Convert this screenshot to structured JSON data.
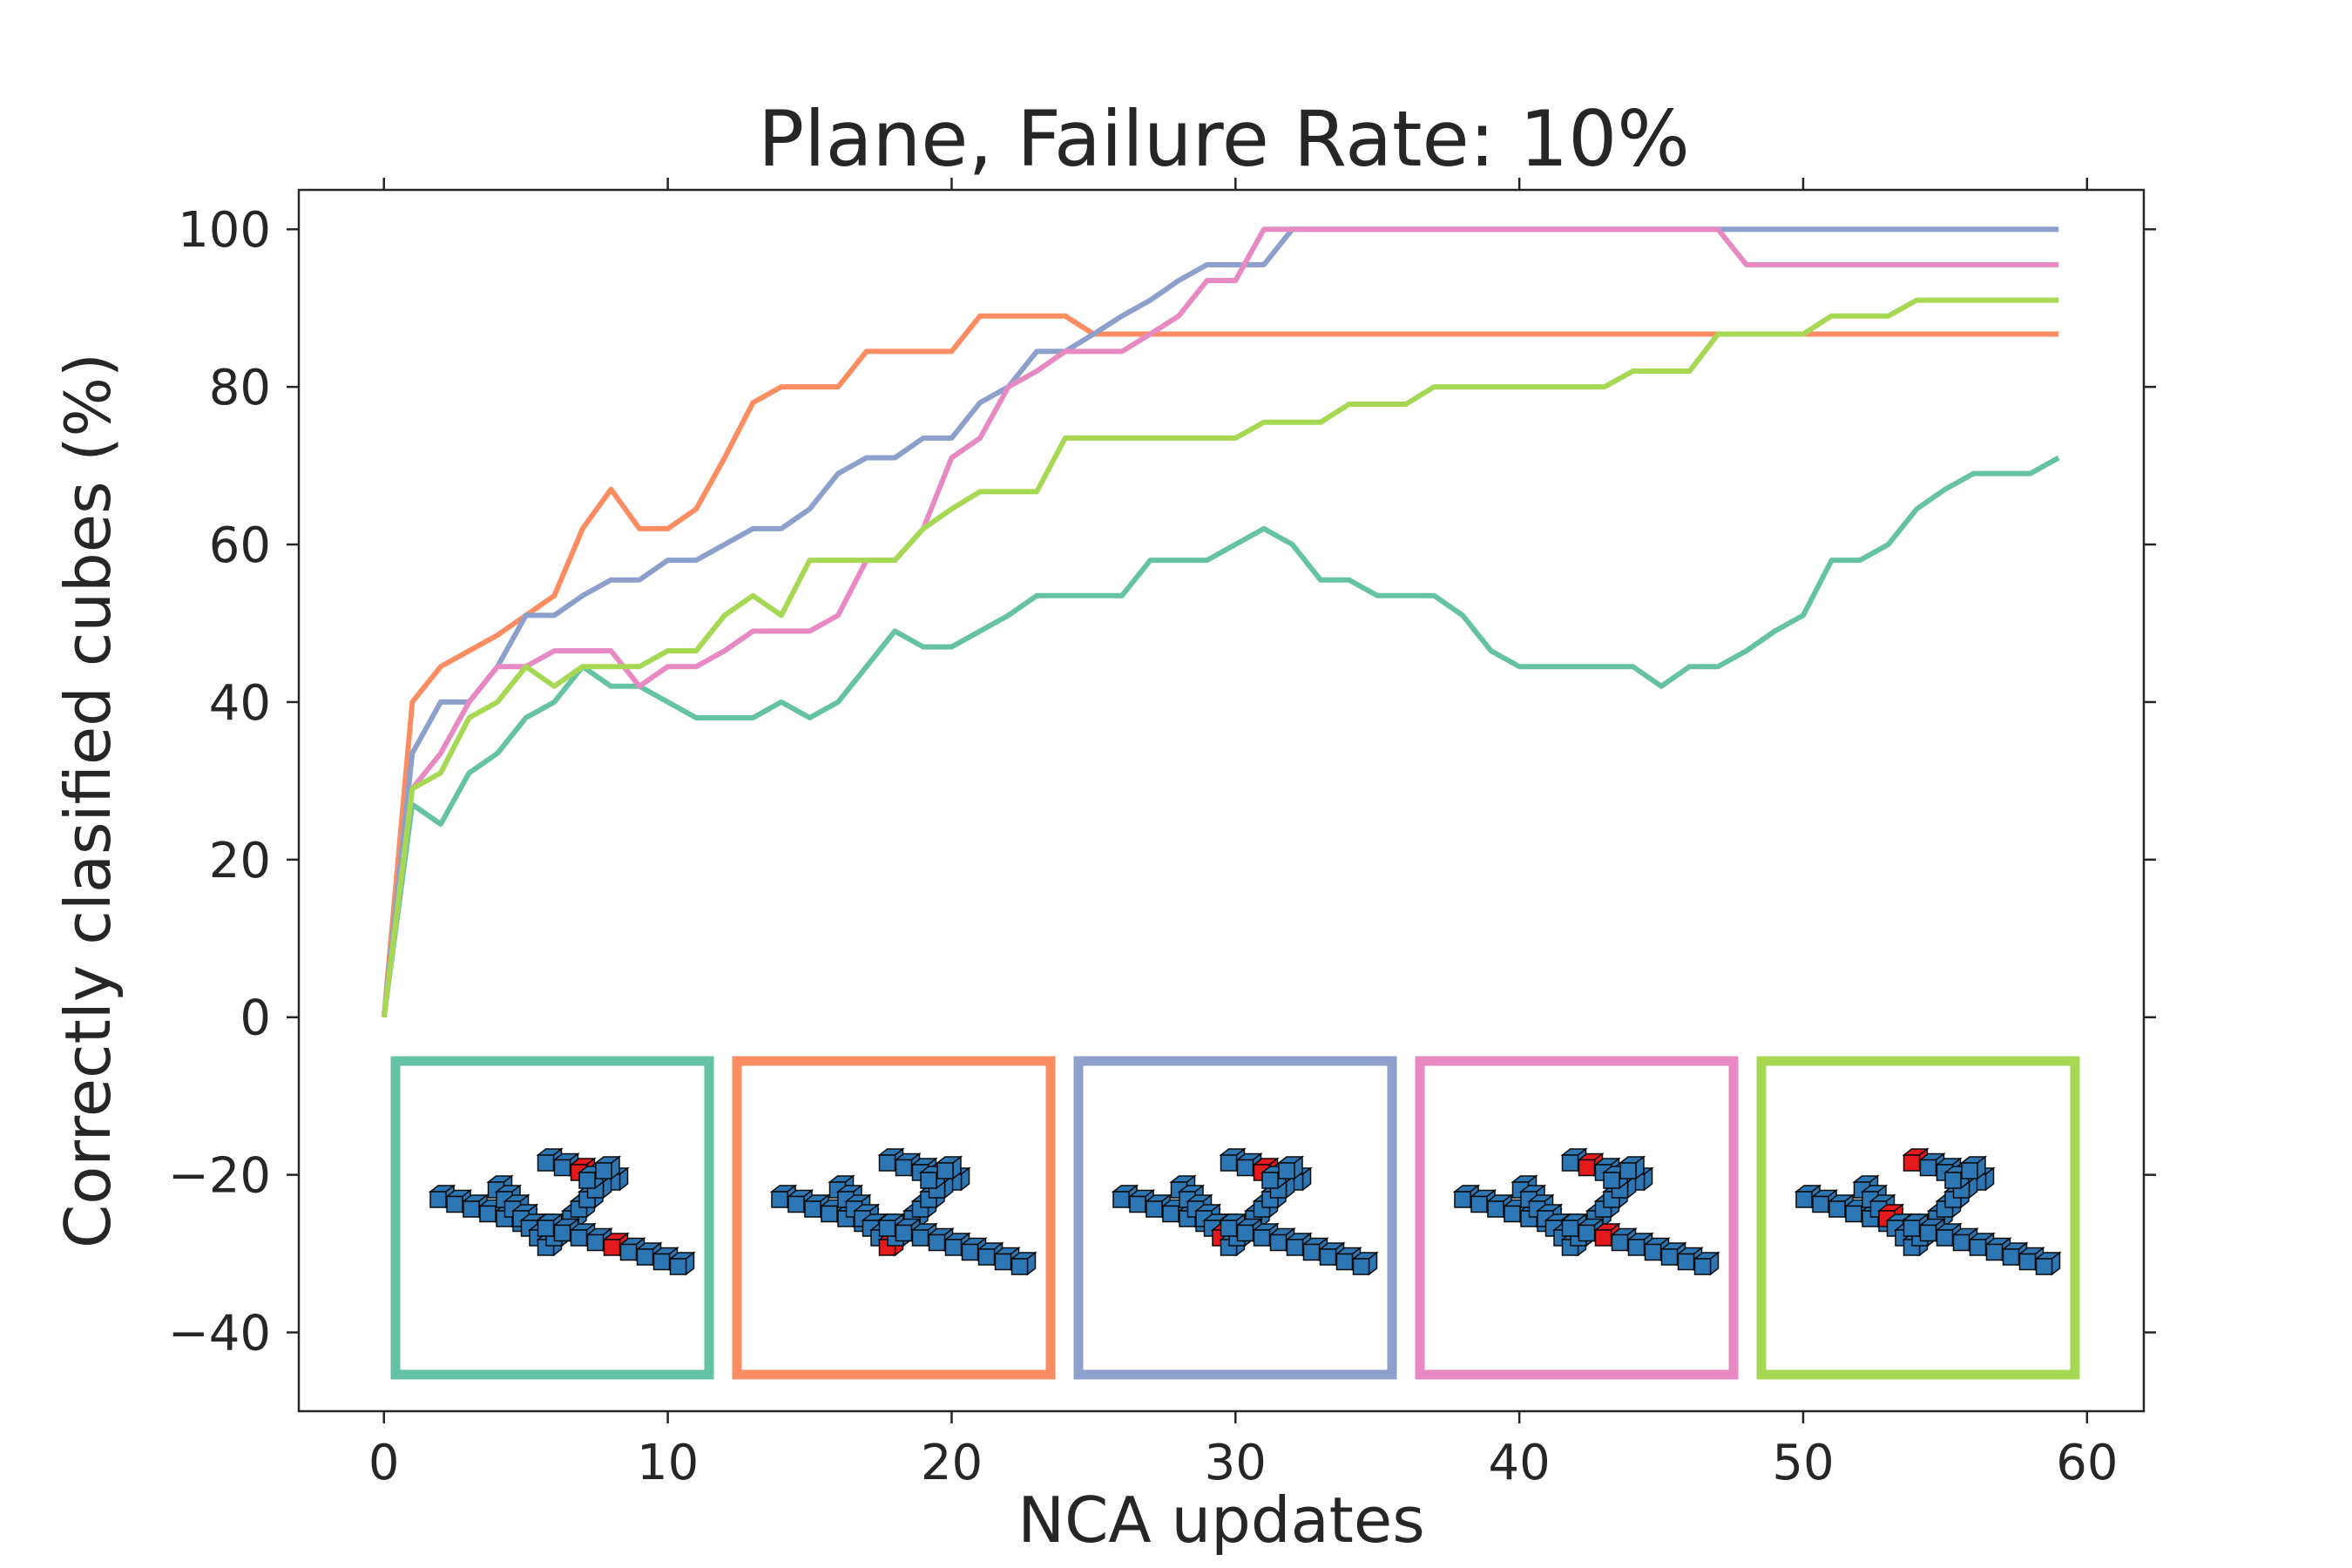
{
  "chart_data": {
    "type": "line",
    "title": "Plane, Failure Rate: 10%",
    "xlabel": "NCA updates",
    "ylabel": "Correctly clasified cubes (%)",
    "xlim": [
      -3,
      62
    ],
    "ylim": [
      -50,
      105
    ],
    "xticks": [
      0,
      10,
      20,
      30,
      40,
      50,
      60
    ],
    "yticks": [
      100,
      80,
      60,
      40,
      20,
      0,
      -20,
      -40
    ],
    "ytick_labels": [
      "100",
      "80",
      "60",
      "40",
      "20",
      "0",
      "−20",
      "−40"
    ],
    "grid": false,
    "x": [
      0,
      1,
      2,
      3,
      4,
      5,
      6,
      7,
      8,
      9,
      10,
      11,
      12,
      13,
      14,
      15,
      16,
      17,
      18,
      19,
      20,
      21,
      22,
      23,
      24,
      25,
      26,
      27,
      28,
      29,
      30,
      31,
      32,
      33,
      34,
      35,
      36,
      37,
      38,
      39,
      40,
      41,
      42,
      43,
      44,
      45,
      46,
      47,
      48,
      49,
      50,
      51,
      52,
      53,
      54,
      55,
      56,
      57,
      58,
      59
    ],
    "series": [
      {
        "name": "run-teal",
        "color": "#66c2a5",
        "values": [
          0,
          27,
          24.5,
          31,
          33.5,
          38,
          40,
          44.5,
          42,
          42,
          40,
          38,
          38,
          38,
          40,
          38,
          40,
          44.5,
          49,
          47,
          47,
          49,
          51,
          53.5,
          53.5,
          53.5,
          53.5,
          58,
          58,
          58,
          60,
          62,
          60,
          55.5,
          55.5,
          53.5,
          53.5,
          53.5,
          51,
          46.5,
          44.5,
          44.5,
          44.5,
          44.5,
          44.5,
          42,
          44.5,
          44.5,
          46.5,
          49,
          51,
          58,
          58,
          60,
          64.5,
          67,
          69,
          69,
          69,
          71
        ]
      },
      {
        "name": "run-orange",
        "color": "#fc8d62",
        "values": [
          0,
          40,
          44.5,
          46.5,
          48.5,
          51,
          53.5,
          62,
          67,
          62,
          62,
          64.5,
          71,
          78,
          80,
          80,
          80,
          84.5,
          84.5,
          84.5,
          84.5,
          89,
          89,
          89,
          89,
          86.7,
          86.7,
          86.7,
          86.7,
          86.7,
          86.7,
          86.7,
          86.7,
          86.7,
          86.7,
          86.7,
          86.7,
          86.7,
          86.7,
          86.7,
          86.7,
          86.7,
          86.7,
          86.7,
          86.7,
          86.7,
          86.7,
          86.7,
          86.7,
          86.7,
          86.7,
          86.7,
          86.7,
          86.7,
          86.7,
          86.7,
          86.7,
          86.7,
          86.7,
          86.7
        ]
      },
      {
        "name": "run-blue",
        "color": "#8da0cb",
        "values": [
          0,
          33.5,
          40,
          40,
          44.5,
          51,
          51,
          53.5,
          55.5,
          55.5,
          58,
          58,
          60,
          62,
          62,
          64.5,
          69,
          71,
          71,
          73.5,
          73.5,
          78,
          80,
          84.5,
          84.5,
          86.7,
          89,
          91,
          93.5,
          95.5,
          95.5,
          95.5,
          100,
          100,
          100,
          100,
          100,
          100,
          100,
          100,
          100,
          100,
          100,
          100,
          100,
          100,
          100,
          100,
          100,
          100,
          100,
          100,
          100,
          100,
          100,
          100,
          100,
          100,
          100,
          100
        ]
      },
      {
        "name": "run-pink",
        "color": "#e78ac3",
        "values": [
          0,
          29,
          33.5,
          40,
          44.5,
          44.5,
          46.5,
          46.5,
          46.5,
          42,
          44.5,
          44.5,
          46.5,
          49,
          49,
          49,
          51,
          58,
          58,
          62,
          71,
          73.5,
          80,
          82,
          84.5,
          84.5,
          84.5,
          86.7,
          89,
          93.5,
          93.5,
          100,
          100,
          100,
          100,
          100,
          100,
          100,
          100,
          100,
          100,
          100,
          100,
          100,
          100,
          100,
          100,
          100,
          95.5,
          95.5,
          95.5,
          95.5,
          95.5,
          95.5,
          95.5,
          95.5,
          95.5,
          95.5,
          95.5,
          95.5
        ]
      },
      {
        "name": "run-green",
        "color": "#a6d854",
        "values": [
          0,
          29,
          31,
          38,
          40,
          44.5,
          42,
          44.5,
          44.5,
          44.5,
          46.5,
          46.5,
          51,
          53.5,
          51,
          58,
          58,
          58,
          58,
          62,
          64.5,
          66.7,
          66.7,
          66.7,
          73.5,
          73.5,
          73.5,
          73.5,
          73.5,
          73.5,
          73.5,
          75.5,
          75.5,
          75.5,
          77.8,
          77.8,
          77.8,
          80,
          80,
          80,
          80,
          80,
          80,
          80,
          82,
          82,
          82,
          86.7,
          86.7,
          86.7,
          86.7,
          89,
          89,
          89,
          91,
          91,
          91,
          91,
          91,
          91
        ]
      }
    ],
    "insets": [
      {
        "name": "inset-teal",
        "color": "#66c2a5"
      },
      {
        "name": "inset-orange",
        "color": "#fc8d62"
      },
      {
        "name": "inset-blue",
        "color": "#8da0cb"
      },
      {
        "name": "inset-pink",
        "color": "#e78ac3"
      },
      {
        "name": "inset-green",
        "color": "#a6d854"
      }
    ],
    "cube_colors": {
      "body": "#2d76b4",
      "highlight": "#e41a1c",
      "edge": "#0a0a0a"
    }
  }
}
